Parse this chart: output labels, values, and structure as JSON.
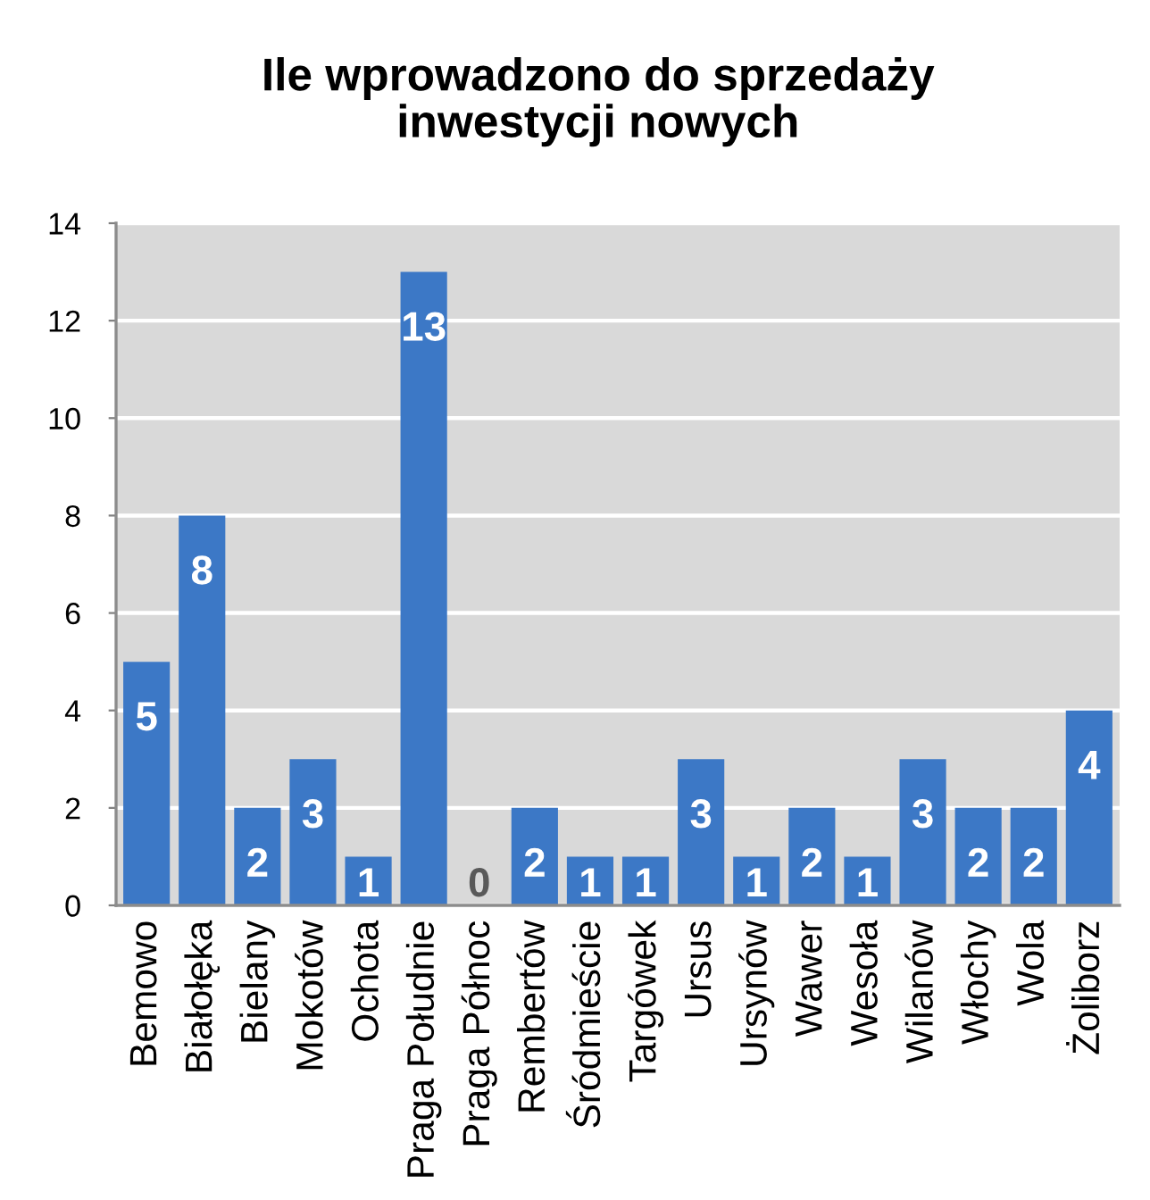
{
  "chart_data": {
    "type": "bar",
    "title": "Ile wprowadzono do sprzedaży\ninwestycji nowych",
    "categories": [
      "Bemowo",
      "Białołęka",
      "Bielany",
      "Mokotów",
      "Ochota",
      "Praga Południe",
      "Praga Północ",
      "Rembertów",
      "Śródmieście",
      "Targówek",
      "Ursus",
      "Ursynów",
      "Wawer",
      "Wesoła",
      "Wilanów",
      "Włochy",
      "Wola",
      "Żoliborz"
    ],
    "values": [
      5,
      8,
      2,
      3,
      1,
      13,
      0,
      2,
      1,
      1,
      3,
      1,
      2,
      1,
      3,
      2,
      2,
      4
    ],
    "color": "#3c78c6",
    "ylim": [
      0,
      14
    ],
    "yticks": [
      0,
      2,
      4,
      6,
      8,
      10,
      12,
      14
    ],
    "grid": "y",
    "data_labels": true
  }
}
